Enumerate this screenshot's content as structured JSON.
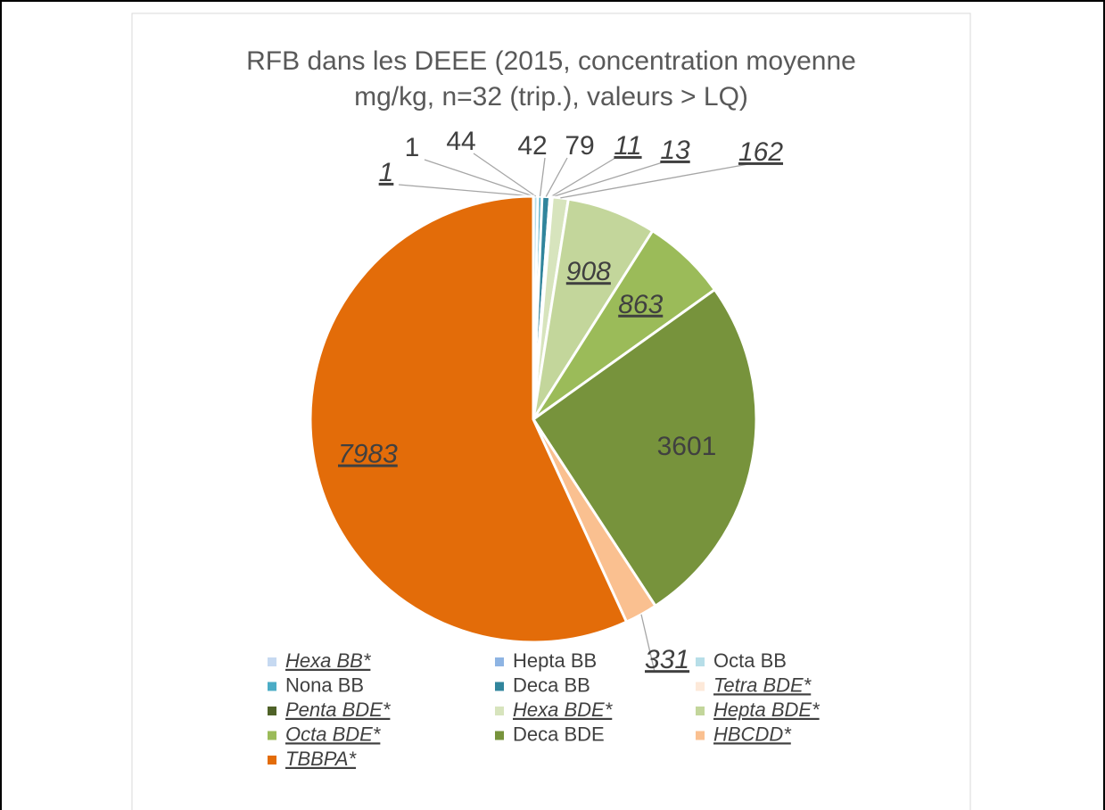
{
  "chart_data": {
    "type": "pie",
    "title": [
      "RFB dans les DEEE (2015, concentration moyenne",
      "mg/kg, n=32 (trip.), valeurs > LQ)"
    ],
    "categories": [
      "Hexa BB*",
      "Hepta BB",
      "Octa BB",
      "Nona BB",
      "Deca BB",
      "Tetra BDE*",
      "Penta BDE*",
      "Hexa BDE*",
      "Hepta BDE*",
      "Octa  BDE*",
      "Deca BDE",
      "HBCDD*",
      "TBBPA*"
    ],
    "values": [
      1,
      1,
      44,
      42,
      79,
      11,
      13,
      162,
      908,
      863,
      3601,
      331,
      7983
    ],
    "colors": [
      "#c6d9f1",
      "#8eb4e3",
      "#b7dee8",
      "#4bacc6",
      "#31859c",
      "#fde9d9",
      "#4f6228",
      "#d7e4bd",
      "#c3d69b",
      "#9bbb59",
      "#77933c",
      "#fac090",
      "#e36c09"
    ],
    "legend": "bottom"
  }
}
